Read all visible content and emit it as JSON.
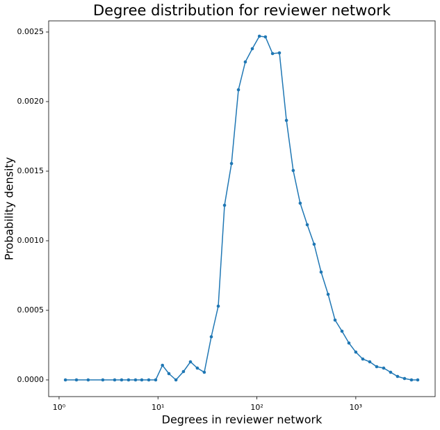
{
  "chart_data": {
    "type": "line",
    "title": "Degree distribution for reviewer network",
    "xlabel": "Degrees in reviewer network",
    "ylabel": "Probability density",
    "xscale": "log",
    "color": "#1f77b4",
    "x": [
      1.16,
      1.5,
      1.97,
      2.77,
      3.65,
      4.29,
      5.04,
      5.93,
      6.86,
      8.07,
      9.48,
      11.1,
      12.9,
      15.2,
      18.1,
      21.3,
      25.0,
      29.4,
      34.6,
      40.7,
      47.1,
      55.4,
      65.1,
      76.4,
      89.9,
      106,
      122,
      144,
      169,
      199,
      233,
      274,
      323,
      379,
      446,
      525,
      617,
      725,
      852,
      1000,
      1177,
      1384,
      1627,
      1913,
      2249,
      2644,
      3110,
      3655,
      4230
    ],
    "values": [
      0,
      0,
      0,
      0,
      0,
      0,
      0,
      0,
      0,
      0,
      0,
      0.000105,
      4.5e-05,
      0,
      6e-05,
      0.00013,
      8.5e-05,
      5.5e-05,
      0.00031,
      0.00053,
      0.001255,
      0.001555,
      0.002085,
      0.002285,
      0.00238,
      0.00247,
      0.002465,
      0.002345,
      0.00235,
      0.001865,
      0.001505,
      0.00127,
      0.001115,
      0.000975,
      0.000775,
      0.000615,
      0.00043,
      0.00035,
      0.000265,
      0.0002,
      0.00015,
      0.00013,
      9.5e-05,
      8.5e-05,
      5.5e-05,
      2.5e-05,
      1e-05,
      0,
      0
    ],
    "xlim": [
      0.785,
      6340
    ],
    "ylim": [
      -0.00012,
      0.00258
    ],
    "xticks": [
      {
        "value": 1,
        "label": "10⁰"
      },
      {
        "value": 10,
        "label": "10¹"
      },
      {
        "value": 100,
        "label": "10²"
      },
      {
        "value": 1000,
        "label": "10³"
      }
    ],
    "yticks": [
      {
        "value": 0,
        "label": "0.0000"
      },
      {
        "value": 0.0005,
        "label": "0.0005"
      },
      {
        "value": 0.001,
        "label": "0.0010"
      },
      {
        "value": 0.0015,
        "label": "0.0015"
      },
      {
        "value": 0.002,
        "label": "0.0020"
      },
      {
        "value": 0.0025,
        "label": "0.0025"
      }
    ]
  }
}
